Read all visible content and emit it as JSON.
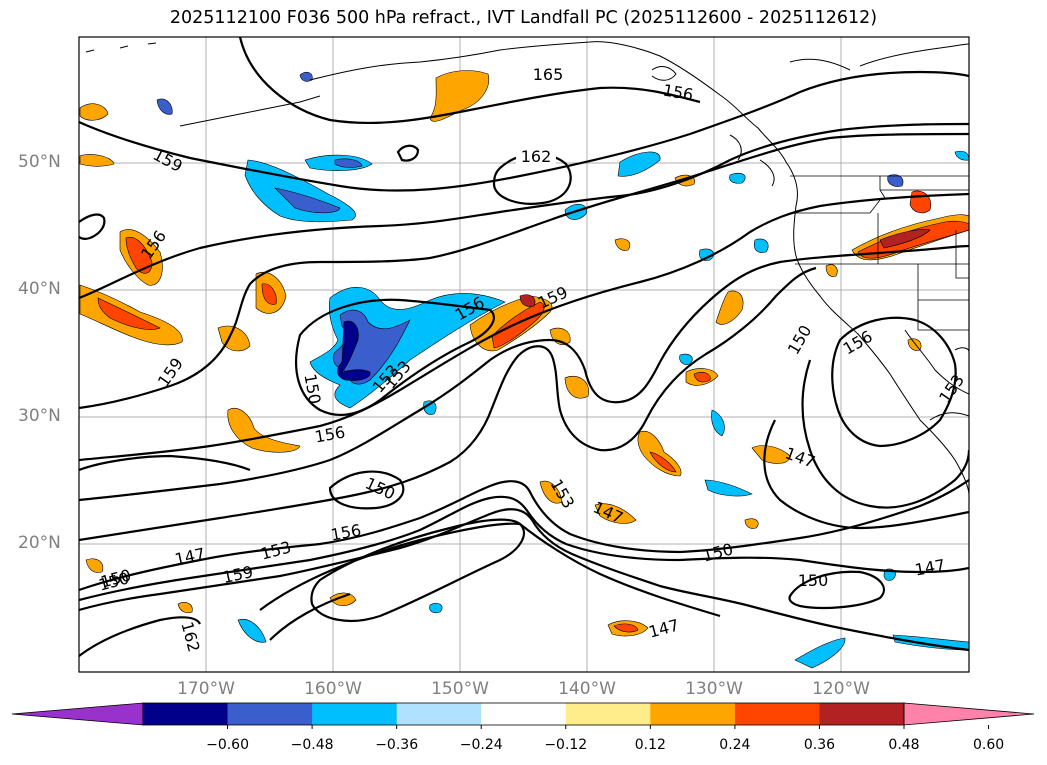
{
  "title": "2025112100 F036 500 hPa refract., IVT Landfall PC (2025112600 - 2025112612)",
  "lat_labels": [
    "50°N",
    "40°N",
    "30°N",
    "20°N"
  ],
  "lon_labels": [
    "170°W",
    "160°W",
    "150°W",
    "140°W",
    "130°W",
    "120°W"
  ],
  "contour_labels": [
    "165",
    "162",
    "159",
    "159",
    "156",
    "156",
    "159",
    "156",
    "153",
    "150",
    "156",
    "150",
    "156",
    "153",
    "159",
    "150",
    "147",
    "162",
    "147",
    "150",
    "153",
    "150",
    "147",
    "153",
    "150",
    "156",
    "153",
    "147",
    "147",
    "150"
  ],
  "colorbar": {
    "ticks": [
      "−0.60",
      "−0.48",
      "−0.36",
      "−0.24",
      "−0.12",
      "0.12",
      "0.24",
      "0.36",
      "0.48",
      "0.60"
    ],
    "colors": [
      "#9932CC",
      "#00008B",
      "#3A5FCD",
      "#00BFFF",
      "#B0E2FF",
      "#FFFFFF",
      "#FFEC8B",
      "#FFA500",
      "#FF4500",
      "#B22222",
      "#FF82AB"
    ]
  }
}
